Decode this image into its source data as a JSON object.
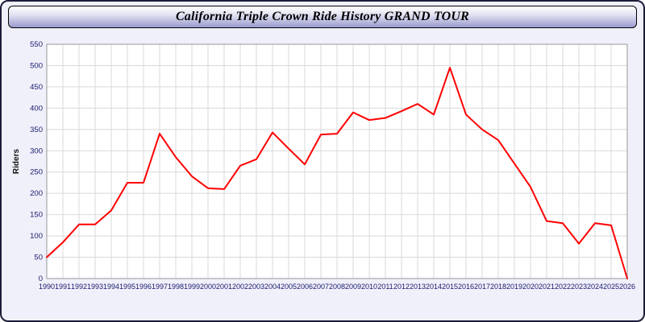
{
  "header": {
    "title": "California Triple Crown Ride History GRAND TOUR"
  },
  "chart_data": {
    "type": "line",
    "title": "California Triple Crown Ride History GRAND TOUR",
    "xlabel": "",
    "ylabel": "Riders",
    "ylim": [
      0,
      550
    ],
    "y_ticks": [
      0,
      50,
      100,
      150,
      200,
      250,
      300,
      350,
      400,
      450,
      500,
      550
    ],
    "grid": true,
    "legend_position": "none",
    "x": [
      1990,
      1991,
      1992,
      1993,
      1994,
      1995,
      1996,
      1997,
      1998,
      1999,
      2000,
      2001,
      2002,
      2003,
      2004,
      2005,
      2006,
      2007,
      2008,
      2009,
      2010,
      2011,
      2012,
      2013,
      2014,
      2015,
      2016,
      2017,
      2018,
      2019,
      2020,
      2021,
      2022,
      2023,
      2024,
      2025,
      2026
    ],
    "values": [
      50,
      85,
      127,
      127,
      160,
      225,
      225,
      340,
      285,
      240,
      212,
      210,
      265,
      280,
      343,
      305,
      268,
      338,
      340,
      390,
      372,
      377,
      393,
      410,
      385,
      495,
      385,
      350,
      325,
      270,
      215,
      135,
      130,
      82,
      130,
      125,
      0
    ]
  },
  "colors": {
    "line": "#ff0000",
    "page_bg": "#f0f0fa",
    "plot_bg": "#ffffff",
    "grid": "#d9d9d9",
    "plot_border": "#999999",
    "axis_text": "#1a1a6e",
    "ylabel_text": "#111111",
    "title_text": "#000000"
  }
}
